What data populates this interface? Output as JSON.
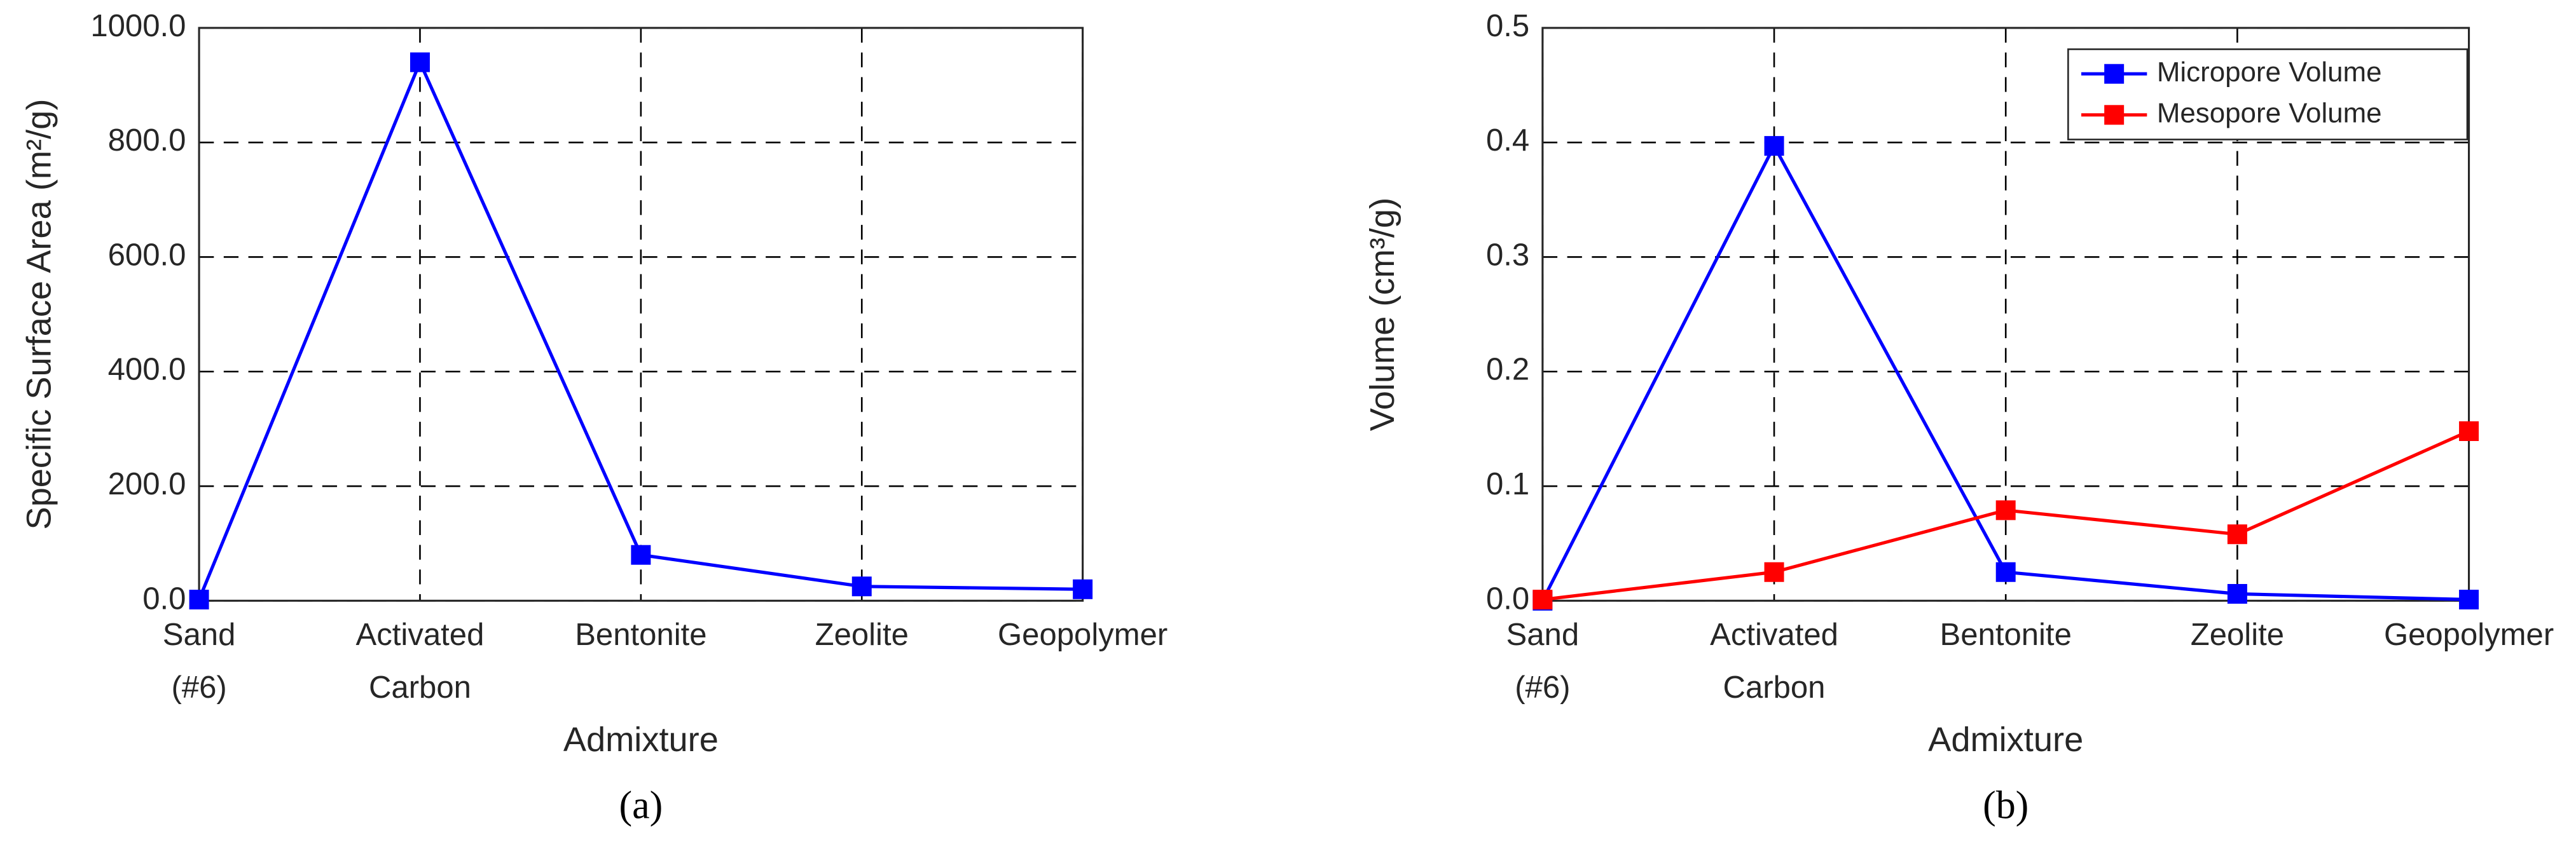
{
  "chart_data": [
    {
      "type": "line",
      "caption": "(a)",
      "x_label": "Admixture",
      "y_label": "Specific Surface Area (m²/g)",
      "categories": [
        "Sand (#6)",
        "Activated Carbon",
        "Bentonite",
        "Zeolite",
        "Geopolymer"
      ],
      "values": [
        2,
        940,
        80,
        25,
        20
      ],
      "color": "#0000ff",
      "ylim": [
        0,
        1000
      ],
      "yticks": [
        {
          "value": 0,
          "label": "0.0"
        },
        {
          "value": 200,
          "label": "200.0"
        },
        {
          "value": 400,
          "label": "400.0"
        },
        {
          "value": 600,
          "label": "600.0"
        },
        {
          "value": 800,
          "label": "800.0"
        },
        {
          "value": 1000,
          "label": "1000.0"
        }
      ],
      "grid": true
    },
    {
      "type": "line",
      "caption": "(b)",
      "x_label": "Admixture",
      "y_label": "Volume (cm³/g)",
      "categories": [
        "Sand (#6)",
        "Activated Carbon",
        "Bentonite",
        "Zeolite",
        "Geopolymer"
      ],
      "series": [
        {
          "name": "Micropore Volume",
          "color": "#0000ff",
          "values": [
            0,
            0.397,
            0.025,
            0.006,
            0.001
          ]
        },
        {
          "name": "Mesopore Volume",
          "color": "#ff0000",
          "values": [
            0.001,
            0.025,
            0.079,
            0.058,
            0.148
          ]
        }
      ],
      "ylim": [
        0,
        0.5
      ],
      "yticks": [
        {
          "value": 0,
          "label": "0.0"
        },
        0.1,
        0.2,
        0.3,
        0.4,
        0.5
      ],
      "grid": true,
      "legend": "top-right"
    }
  ]
}
